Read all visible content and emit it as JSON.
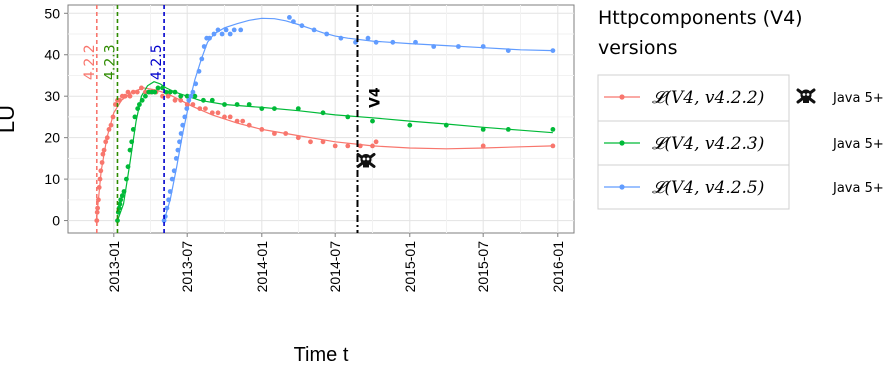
{
  "chart_data": {
    "type": "scatter",
    "xlabel": "Time t",
    "ylabel": "LU",
    "ylim": [
      -3,
      52
    ],
    "xlim": [
      "2012-09-10",
      "2016-02-10"
    ],
    "x_ticks": [
      "2013-01",
      "2013-07",
      "2014-01",
      "2014-07",
      "2015-01",
      "2015-07",
      "2016-01"
    ],
    "y_ticks": [
      0,
      10,
      20,
      30,
      40,
      50
    ],
    "grid": true,
    "legend_position": "right",
    "legend_title": [
      "Httpcomponents (V4)",
      "versions"
    ],
    "legend_entries": [
      {
        "label": "𝓛(V4, v4.2.2)",
        "note": "Java 5+",
        "color": "#f8766d",
        "marker": "skull-icon"
      },
      {
        "label": "𝓛(V4, v4.2.3)",
        "note": "Java 5+",
        "color": "#00ba38",
        "marker": ""
      },
      {
        "label": "𝓛(V4, v4.2.5)",
        "note": "Java 5+",
        "color": "#619cff",
        "marker": ""
      }
    ],
    "vertical_lines": [
      {
        "x": "2012-11-20",
        "label": "4.2.2",
        "color": "#f8766d",
        "style": "dashed"
      },
      {
        "x": "2013-01-10",
        "label": "4.2.3",
        "color": "#2e8b00",
        "style": "dashed"
      },
      {
        "x": "2013-05-05",
        "label": "4.2.5",
        "color": "#0000cc",
        "style": "dashed"
      },
      {
        "x": "2014-08-25",
        "label": "V4",
        "color": "#000000",
        "style": "dashdot"
      }
    ],
    "annotations": [
      {
        "x": "2014-09-15",
        "y": 14.5,
        "icon": "skull-icon"
      }
    ],
    "series": [
      {
        "name": "𝓛(V4, v4.2.2)",
        "color": "#f8766d",
        "points": [
          [
            "2012-11-20",
            0
          ],
          [
            "2012-11-21",
            2
          ],
          [
            "2012-11-22",
            3
          ],
          [
            "2012-11-24",
            5
          ],
          [
            "2012-11-26",
            8
          ],
          [
            "2012-11-28",
            10
          ],
          [
            "2012-11-30",
            12
          ],
          [
            "2012-12-03",
            14
          ],
          [
            "2012-12-05",
            16
          ],
          [
            "2012-12-08",
            17
          ],
          [
            "2012-12-12",
            19
          ],
          [
            "2012-12-16",
            20
          ],
          [
            "2012-12-20",
            22
          ],
          [
            "2012-12-25",
            23
          ],
          [
            "2012-12-30",
            25
          ],
          [
            "2013-01-05",
            28
          ],
          [
            "2013-01-10",
            29
          ],
          [
            "2013-01-15",
            29
          ],
          [
            "2013-01-22",
            30
          ],
          [
            "2013-01-29",
            30
          ],
          [
            "2013-02-05",
            31
          ],
          [
            "2013-02-10",
            30
          ],
          [
            "2013-02-18",
            31
          ],
          [
            "2013-02-28",
            31
          ],
          [
            "2013-03-10",
            32
          ],
          [
            "2013-03-20",
            31
          ],
          [
            "2013-04-01",
            31
          ],
          [
            "2013-04-15",
            31
          ],
          [
            "2013-05-01",
            30
          ],
          [
            "2013-05-15",
            30
          ],
          [
            "2013-06-01",
            29
          ],
          [
            "2013-06-15",
            29
          ],
          [
            "2013-07-01",
            28
          ],
          [
            "2013-07-15",
            28
          ],
          [
            "2013-08-01",
            27
          ],
          [
            "2013-08-15",
            27
          ],
          [
            "2013-09-01",
            26
          ],
          [
            "2013-09-15",
            26
          ],
          [
            "2013-10-01",
            25
          ],
          [
            "2013-10-15",
            25
          ],
          [
            "2013-11-01",
            24
          ],
          [
            "2013-11-15",
            24
          ],
          [
            "2013-12-01",
            23
          ],
          [
            "2014-01-01",
            22
          ],
          [
            "2014-02-01",
            21
          ],
          [
            "2014-03-01",
            21
          ],
          [
            "2014-04-01",
            20
          ],
          [
            "2014-05-01",
            19
          ],
          [
            "2014-06-01",
            19
          ],
          [
            "2014-07-01",
            18
          ],
          [
            "2014-08-01",
            18
          ],
          [
            "2014-09-01",
            18
          ],
          [
            "2014-10-01",
            18
          ],
          [
            "2014-10-10",
            19
          ],
          [
            "2015-07-01",
            18
          ],
          [
            "2015-12-20",
            18
          ]
        ],
        "trend": [
          [
            "2012-11-20",
            1
          ],
          [
            "2012-12-01",
            12
          ],
          [
            "2012-12-15",
            20
          ],
          [
            "2013-01-01",
            26
          ],
          [
            "2013-01-20",
            29
          ],
          [
            "2013-02-15",
            31
          ],
          [
            "2013-03-15",
            32
          ],
          [
            "2013-04-15",
            31.5
          ],
          [
            "2013-05-15",
            30.5
          ],
          [
            "2013-06-15",
            29
          ],
          [
            "2013-07-15",
            27.5
          ],
          [
            "2013-09-01",
            25.5
          ],
          [
            "2013-11-01",
            23.5
          ],
          [
            "2014-01-01",
            22
          ],
          [
            "2014-04-01",
            20.5
          ],
          [
            "2014-07-01",
            19
          ],
          [
            "2014-10-01",
            18
          ],
          [
            "2015-01-01",
            17.5
          ],
          [
            "2015-04-01",
            17.3
          ],
          [
            "2015-07-01",
            17.5
          ],
          [
            "2015-10-01",
            17.8
          ],
          [
            "2015-12-20",
            18
          ]
        ]
      },
      {
        "name": "𝓛(V4, v4.2.3)",
        "color": "#00ba38",
        "points": [
          [
            "2013-01-10",
            0
          ],
          [
            "2013-01-12",
            2
          ],
          [
            "2013-01-14",
            3
          ],
          [
            "2013-01-16",
            4
          ],
          [
            "2013-01-18",
            5
          ],
          [
            "2013-01-22",
            6
          ],
          [
            "2013-01-26",
            7
          ],
          [
            "2013-02-01",
            10
          ],
          [
            "2013-02-05",
            13
          ],
          [
            "2013-02-10",
            17
          ],
          [
            "2013-02-14",
            19
          ],
          [
            "2013-02-18",
            22
          ],
          [
            "2013-02-22",
            25
          ],
          [
            "2013-03-01",
            27
          ],
          [
            "2013-03-05",
            28
          ],
          [
            "2013-03-12",
            29
          ],
          [
            "2013-03-20",
            30
          ],
          [
            "2013-03-28",
            31
          ],
          [
            "2013-04-05",
            31
          ],
          [
            "2013-04-12",
            31
          ],
          [
            "2013-04-20",
            32
          ],
          [
            "2013-05-01",
            32
          ],
          [
            "2013-05-10",
            31
          ],
          [
            "2013-05-20",
            31
          ],
          [
            "2013-06-01",
            31
          ],
          [
            "2013-06-15",
            30
          ],
          [
            "2013-07-01",
            30
          ],
          [
            "2013-07-20",
            30
          ],
          [
            "2013-08-10",
            29
          ],
          [
            "2013-09-01",
            29
          ],
          [
            "2013-10-01",
            28
          ],
          [
            "2013-11-01",
            28
          ],
          [
            "2013-12-01",
            28
          ],
          [
            "2014-01-01",
            27
          ],
          [
            "2014-02-01",
            27
          ],
          [
            "2014-04-01",
            27
          ],
          [
            "2014-06-01",
            26
          ],
          [
            "2014-08-01",
            25
          ],
          [
            "2014-10-01",
            24
          ],
          [
            "2015-01-01",
            23
          ],
          [
            "2015-04-01",
            23
          ],
          [
            "2015-07-01",
            22
          ],
          [
            "2015-09-01",
            22
          ],
          [
            "2015-12-20",
            22
          ]
        ],
        "trend": [
          [
            "2013-01-10",
            0
          ],
          [
            "2013-01-25",
            4
          ],
          [
            "2013-02-10",
            14
          ],
          [
            "2013-02-25",
            24
          ],
          [
            "2013-03-10",
            30
          ],
          [
            "2013-03-25",
            32.5
          ],
          [
            "2013-04-10",
            33.5
          ],
          [
            "2013-04-25",
            33
          ],
          [
            "2013-05-10",
            32
          ],
          [
            "2013-06-01",
            31
          ],
          [
            "2013-07-01",
            30
          ],
          [
            "2013-08-01",
            29
          ],
          [
            "2013-10-01",
            28
          ],
          [
            "2014-01-01",
            27.3
          ],
          [
            "2014-04-01",
            26.5
          ],
          [
            "2014-07-01",
            25.5
          ],
          [
            "2014-10-01",
            24.8
          ],
          [
            "2015-01-01",
            24
          ],
          [
            "2015-04-01",
            23.3
          ],
          [
            "2015-07-01",
            22.5
          ],
          [
            "2015-10-01",
            21.8
          ],
          [
            "2015-12-20",
            21.2
          ]
        ]
      },
      {
        "name": "𝓛(V4, v4.2.5)",
        "color": "#619cff",
        "points": [
          [
            "2013-05-05",
            0
          ],
          [
            "2013-05-08",
            1
          ],
          [
            "2013-05-12",
            3
          ],
          [
            "2013-05-16",
            5
          ],
          [
            "2013-05-20",
            7
          ],
          [
            "2013-05-25",
            10
          ],
          [
            "2013-05-30",
            12
          ],
          [
            "2013-06-04",
            15
          ],
          [
            "2013-06-08",
            17
          ],
          [
            "2013-06-12",
            19
          ],
          [
            "2013-06-16",
            21
          ],
          [
            "2013-06-20",
            23
          ],
          [
            "2013-06-25",
            25
          ],
          [
            "2013-06-30",
            27
          ],
          [
            "2013-07-05",
            29
          ],
          [
            "2013-07-10",
            30
          ],
          [
            "2013-07-15",
            31
          ],
          [
            "2013-07-22",
            33
          ],
          [
            "2013-07-30",
            36
          ],
          [
            "2013-08-06",
            39
          ],
          [
            "2013-08-12",
            42
          ],
          [
            "2013-08-18",
            44
          ],
          [
            "2013-08-25",
            44
          ],
          [
            "2013-09-05",
            45
          ],
          [
            "2013-09-15",
            46
          ],
          [
            "2013-09-25",
            45
          ],
          [
            "2013-10-05",
            46
          ],
          [
            "2013-10-15",
            45
          ],
          [
            "2013-10-25",
            46
          ],
          [
            "2013-11-10",
            46
          ],
          [
            "2014-03-10",
            49
          ],
          [
            "2014-03-20",
            48
          ],
          [
            "2014-04-10",
            47
          ],
          [
            "2014-05-10",
            46
          ],
          [
            "2014-06-10",
            45
          ],
          [
            "2014-07-15",
            44
          ],
          [
            "2014-08-20",
            43
          ],
          [
            "2014-09-20",
            44
          ],
          [
            "2014-10-10",
            43
          ],
          [
            "2014-11-20",
            43
          ],
          [
            "2015-01-15",
            43
          ],
          [
            "2015-03-01",
            42
          ],
          [
            "2015-05-01",
            42
          ],
          [
            "2015-07-01",
            42
          ],
          [
            "2015-09-01",
            41
          ],
          [
            "2015-12-20",
            41
          ]
        ],
        "trend": [
          [
            "2013-05-05",
            0
          ],
          [
            "2013-05-20",
            5
          ],
          [
            "2013-06-05",
            13
          ],
          [
            "2013-06-20",
            21
          ],
          [
            "2013-07-05",
            28
          ],
          [
            "2013-07-20",
            34
          ],
          [
            "2013-08-05",
            39
          ],
          [
            "2013-08-20",
            43
          ],
          [
            "2013-09-05",
            45
          ],
          [
            "2013-10-01",
            46.5
          ],
          [
            "2013-11-01",
            47.5
          ],
          [
            "2013-12-01",
            48.3
          ],
          [
            "2014-01-01",
            48.8
          ],
          [
            "2014-02-01",
            48.7
          ],
          [
            "2014-03-01",
            48.2
          ],
          [
            "2014-04-01",
            47.3
          ],
          [
            "2014-05-01",
            46.3
          ],
          [
            "2014-06-01",
            45.3
          ],
          [
            "2014-07-01",
            44.5
          ],
          [
            "2014-08-01",
            44
          ],
          [
            "2014-10-01",
            43.3
          ],
          [
            "2015-01-01",
            42.7
          ],
          [
            "2015-04-01",
            42.2
          ],
          [
            "2015-07-01",
            41.7
          ],
          [
            "2015-10-01",
            41.2
          ],
          [
            "2015-12-20",
            41
          ]
        ]
      }
    ]
  }
}
